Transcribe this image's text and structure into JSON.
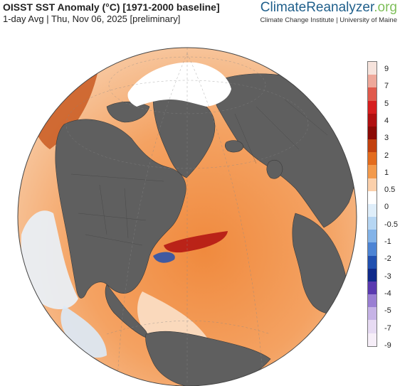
{
  "header": {
    "title": "OISST SST Anomaly (°C) [1971-2000 baseline]",
    "subtitle": "1-day Avg | Thu, Nov 06, 2025 [preliminary]"
  },
  "brand": {
    "name_part1": "Climate",
    "name_part2": "Reanalyzer",
    "name_part3": ".org",
    "affiliation": "Climate Change Institute | University of Maine"
  },
  "map": {
    "projection": "orthographic",
    "center": "North Atlantic",
    "land_color": "#5f5f5f",
    "ice_color": "#ffffff"
  },
  "colorbar": {
    "labels": [
      "9",
      "7",
      "5",
      "4",
      "3",
      "2",
      "1",
      "0.5",
      "0",
      "-0.5",
      "-1",
      "-2",
      "-3",
      "-4",
      "-5",
      "-7",
      "-9"
    ],
    "colors": [
      "#f6e3dc",
      "#eea89a",
      "#e05a4c",
      "#d61e1e",
      "#b01010",
      "#8b0a05",
      "#c2400e",
      "#e36c1e",
      "#f39a4c",
      "#fbd0ab",
      "#ffffff",
      "#dfeefa",
      "#b6d6f3",
      "#83b3e8",
      "#4d84d4",
      "#2150b0",
      "#102a8a",
      "#5a3ab0",
      "#9a7fd3",
      "#c6b3e6",
      "#e7dbf3",
      "#f6eef8"
    ]
  }
}
